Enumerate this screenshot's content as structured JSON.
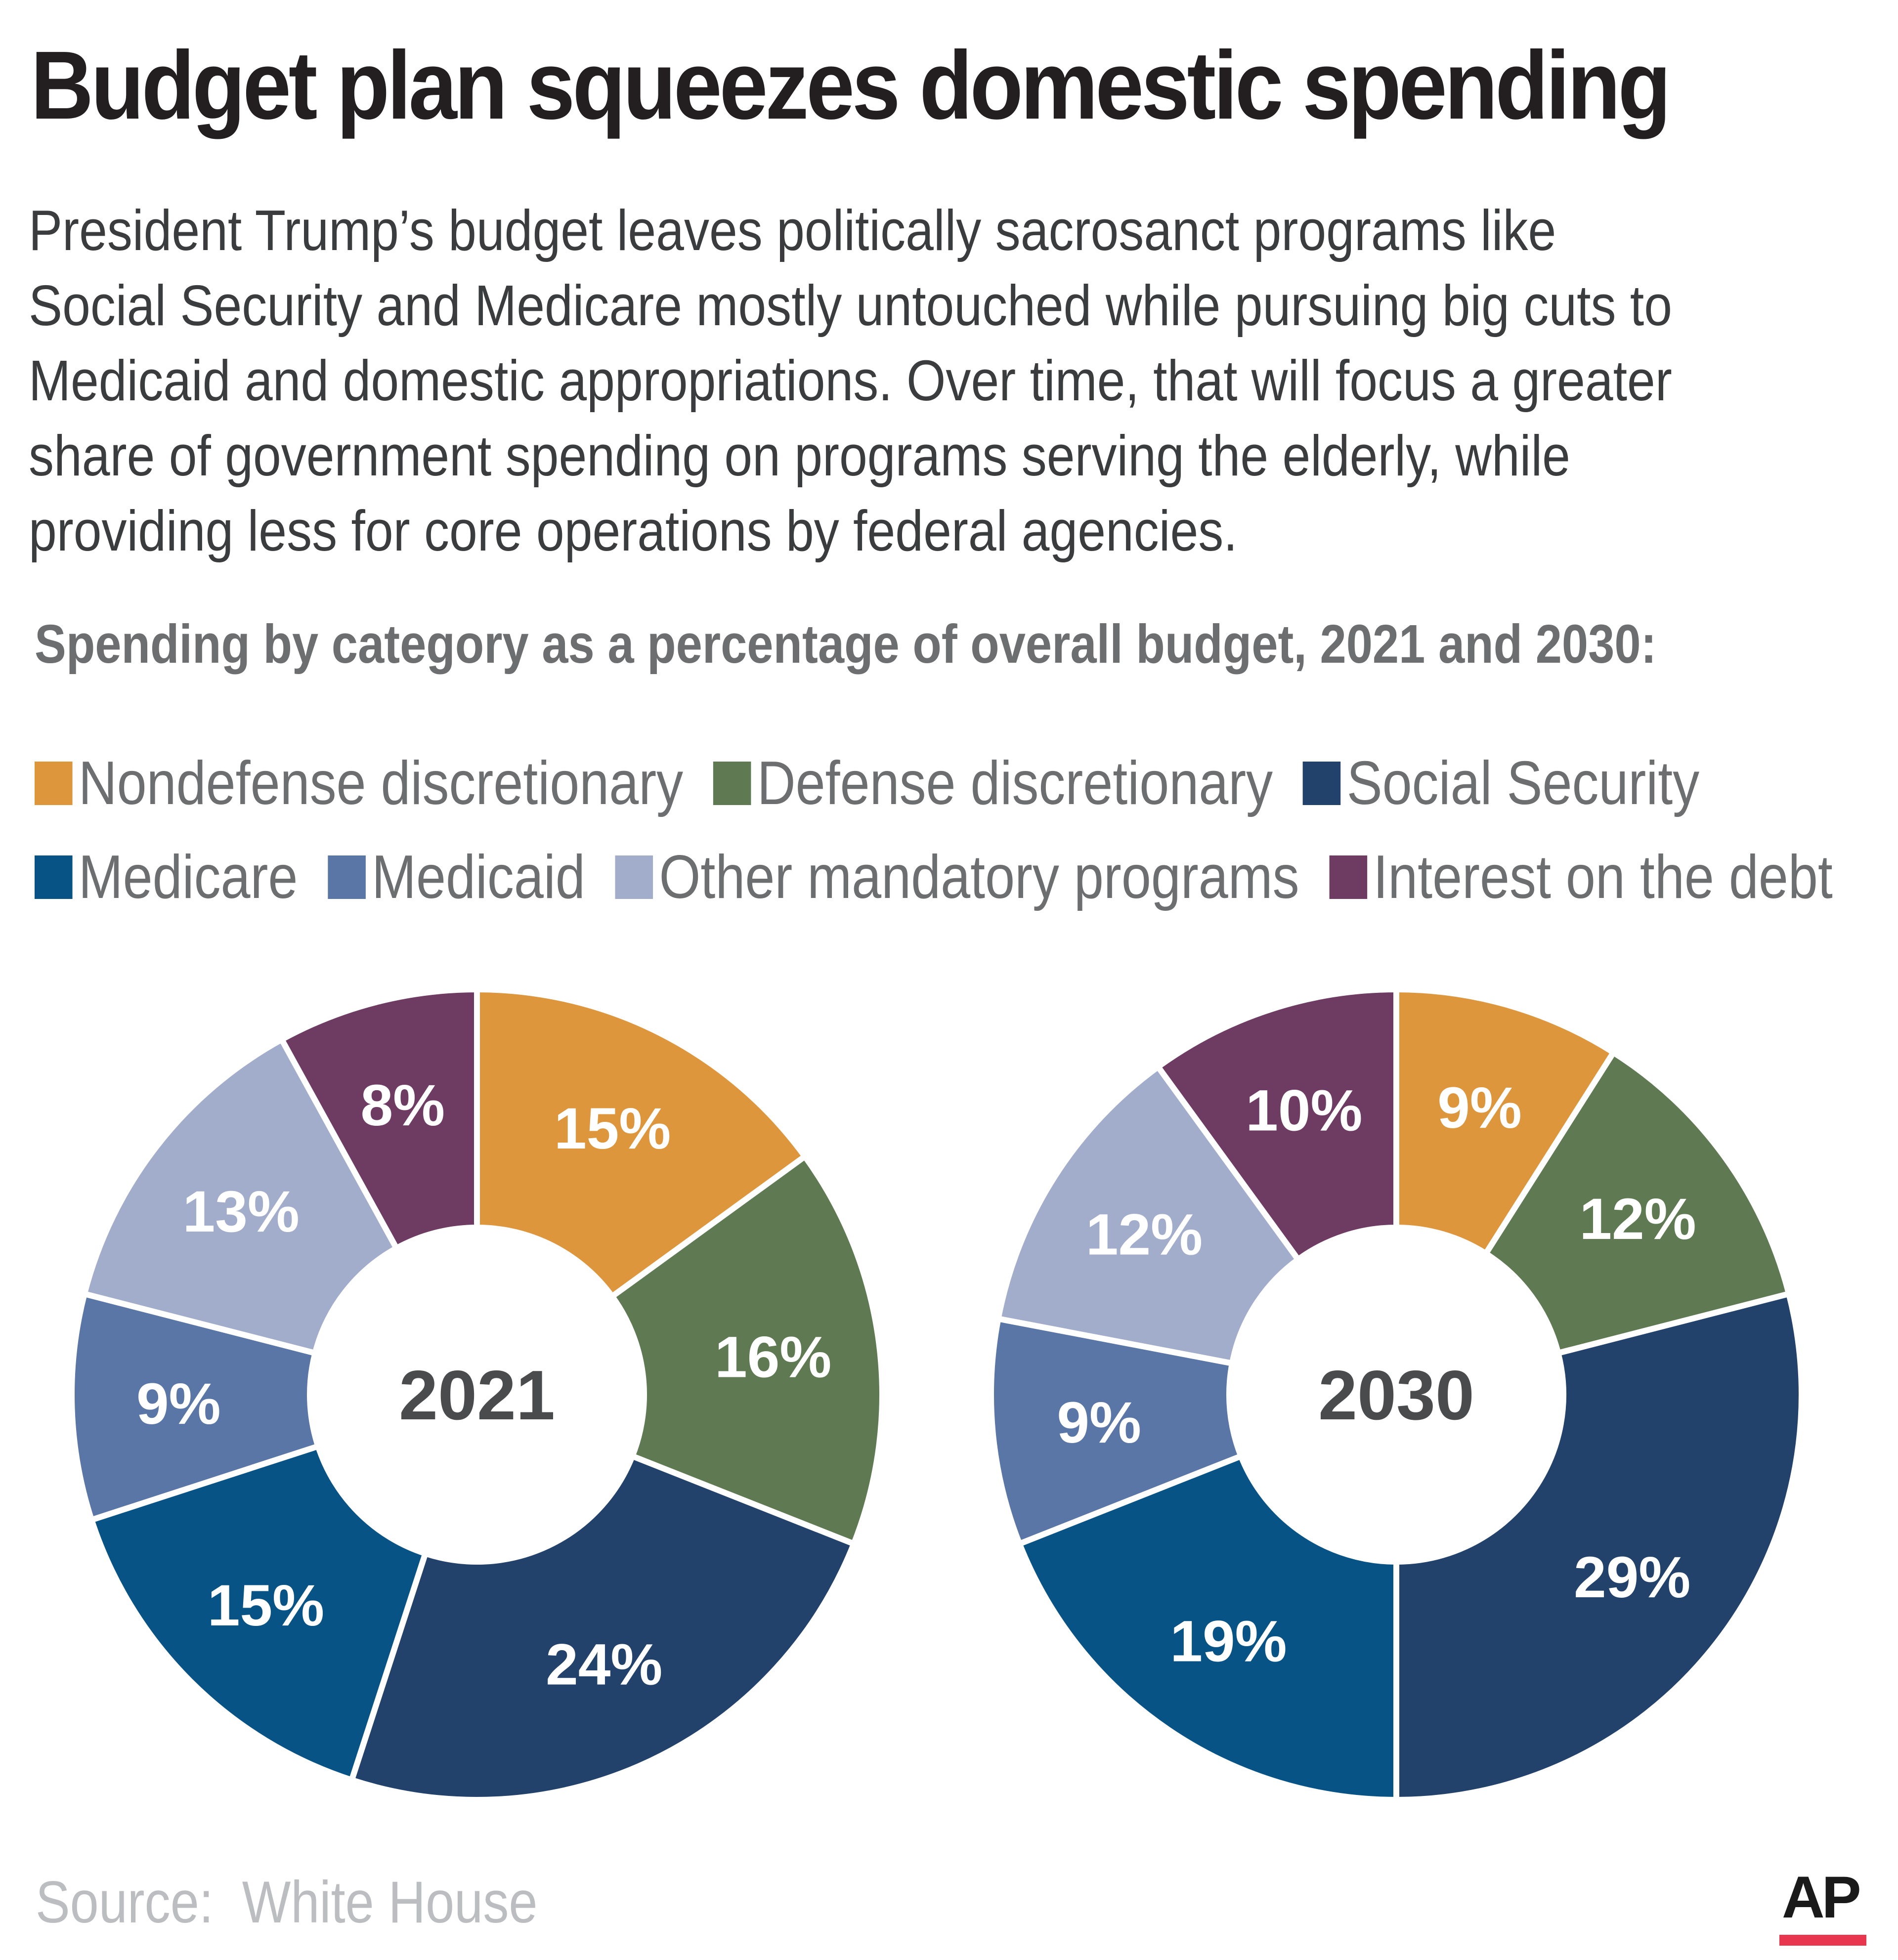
{
  "header": {
    "title": "Budget plan squeezes domestic spending",
    "intro_lines": [
      "President Trump’s budget leaves politically sacrosanct programs like",
      "Social Security and Medicare mostly untouched while pursuing big cuts to",
      "Medicaid and domestic appropriations. Over time, that will focus a greater",
      "share of government spending on programs serving the elderly, while",
      "providing less for core operations by federal agencies."
    ]
  },
  "subtitle": "Spending by category as a percentage of overall budget, 2021 and 2030:",
  "legend": [
    {
      "label": "Nondefense discretionary",
      "color": "#dd963c"
    },
    {
      "label": "Defense discretionary",
      "color": "#5f7a52"
    },
    {
      "label": "Social Security",
      "color": "#22416b"
    },
    {
      "label": "Medicare",
      "color": "#075386"
    },
    {
      "label": "Medicaid",
      "color": "#5a76a6"
    },
    {
      "label": "Other mandatory programs",
      "color": "#a1adcb"
    },
    {
      "label": "Interest on the debt",
      "color": "#6e3b62"
    }
  ],
  "chart_data": [
    {
      "type": "pie",
      "variant": "donut",
      "center_label": "2021",
      "categories": [
        "Nondefense discretionary",
        "Defense discretionary",
        "Social Security",
        "Medicare",
        "Medicaid",
        "Other mandatory programs",
        "Interest on the debt"
      ],
      "values": [
        15,
        16,
        24,
        15,
        9,
        13,
        8
      ],
      "labels": [
        "15%",
        "16%",
        "24%",
        "15%",
        "9%",
        "13%",
        "8%"
      ],
      "start": "top",
      "direction": "clockwise"
    },
    {
      "type": "pie",
      "variant": "donut",
      "center_label": "2030",
      "categories": [
        "Nondefense discretionary",
        "Defense discretionary",
        "Social Security",
        "Medicare",
        "Medicaid",
        "Other mandatory programs",
        "Interest on the debt"
      ],
      "values": [
        9,
        12,
        29,
        19,
        9,
        12,
        10
      ],
      "labels": [
        "9%",
        "12%",
        "29%",
        "19%",
        "9%",
        "12%",
        "10%"
      ],
      "start": "top",
      "direction": "clockwise"
    }
  ],
  "footer": {
    "source": "Source:  White House",
    "logo": "AP"
  }
}
